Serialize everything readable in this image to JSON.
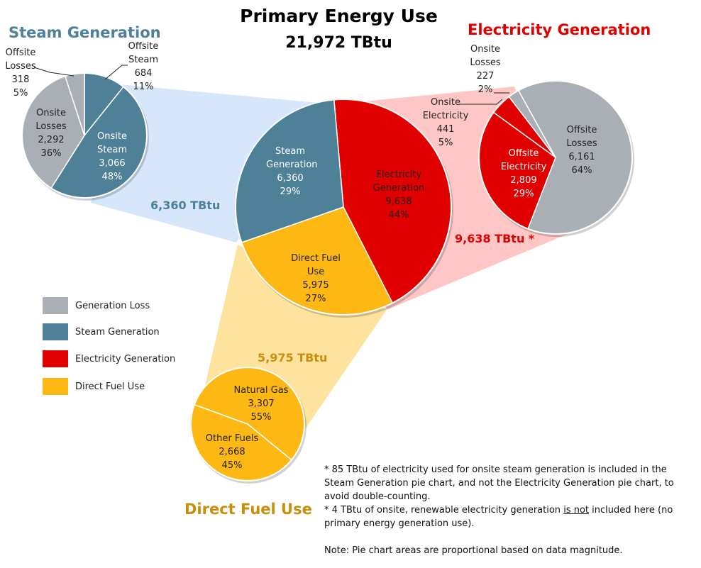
{
  "title": "Primary Energy Use",
  "total": "21,972 TBtu",
  "colors": {
    "gray": "#a9afb4",
    "steam": "#4e8098",
    "electricity": "#e00000",
    "fuel": "#fdb813",
    "steam_link": "#d6e6fb",
    "elec_link": "#ffc6c6",
    "fuel_link": "#fde39e"
  },
  "chart_data": [
    {
      "type": "pie",
      "name": "main",
      "title": "Primary Energy Use",
      "slices": [
        {
          "label": "Electricity Generation",
          "value": 9638,
          "pct": "44%",
          "value_text": "9,638",
          "color": "electricity"
        },
        {
          "label": "Direct Fuel Use",
          "value": 5975,
          "pct": "27%",
          "value_text": "5,975",
          "color": "fuel"
        },
        {
          "label": "Steam Generation",
          "value": 6360,
          "pct": "29%",
          "value_text": "6,360",
          "color": "steam"
        }
      ]
    },
    {
      "type": "pie",
      "name": "steam",
      "title": "Steam Generation",
      "total_label": "6,360 TBtu",
      "slices": [
        {
          "label": "Offsite Steam",
          "value": 684,
          "pct": "11%",
          "value_text": "684",
          "color": "steam"
        },
        {
          "label": "Onsite Steam",
          "value": 3066,
          "pct": "48%",
          "value_text": "3,066",
          "color": "steam"
        },
        {
          "label": "Onsite Losses",
          "value": 2292,
          "pct": "36%",
          "value_text": "2,292",
          "color": "gray"
        },
        {
          "label": "Offsite Losses",
          "value": 318,
          "pct": "5%",
          "value_text": "318",
          "color": "gray"
        }
      ]
    },
    {
      "type": "pie",
      "name": "electricity",
      "title": "Electricity Generation",
      "total_label": "9,638 TBtu *",
      "slices": [
        {
          "label": "Offsite Losses",
          "value": 6161,
          "pct": "64%",
          "value_text": "6,161",
          "color": "gray"
        },
        {
          "label": "Offsite Electricity",
          "value": 2809,
          "pct": "29%",
          "value_text": "2,809",
          "color": "electricity"
        },
        {
          "label": "Onsite Electricity",
          "value": 441,
          "pct": "5%",
          "value_text": "441",
          "color": "electricity"
        },
        {
          "label": "Onsite Losses",
          "value": 227,
          "pct": "2%",
          "value_text": "227",
          "color": "gray"
        }
      ]
    },
    {
      "type": "pie",
      "name": "fuel",
      "title": "Direct Fuel Use",
      "total_label": "5,975 TBtu",
      "slices": [
        {
          "label": "Natural Gas",
          "value": 3307,
          "pct": "55%",
          "value_text": "3,307",
          "color": "fuel"
        },
        {
          "label": "Other Fuels",
          "value": 2668,
          "pct": "45%",
          "value_text": "2,668",
          "color": "fuel"
        }
      ]
    }
  ],
  "legend": [
    {
      "label": "Generation Loss",
      "color": "gray"
    },
    {
      "label": "Steam Generation",
      "color": "steam"
    },
    {
      "label": "Electricity Generation",
      "color": "electricity"
    },
    {
      "label": "Direct Fuel Use",
      "color": "fuel"
    }
  ],
  "notes": {
    "n1": "* 85 TBtu of electricity used for onsite steam generation is included in the Steam Generation pie chart, and not the Electricity Generation pie chart, to avoid double-counting.",
    "n2a": "* 4 TBtu of onsite, renewable electricity generation ",
    "n2u": "is not",
    "n2b": " included  here (no primary energy generation use).",
    "n3": "Note: Pie chart areas are proportional based on data magnitude."
  }
}
